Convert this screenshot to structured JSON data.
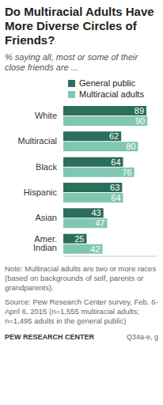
{
  "chart_data": {
    "type": "bar",
    "orientation": "horizontal",
    "title": "Do Multiracial Adults Have More Diverse Circles of Friends?",
    "subtitle": "% saying all, most or some of their close friends are ...",
    "categories": [
      "White",
      "Multiracial",
      "Black",
      "Hispanic",
      "Asian",
      "Amer. Indian"
    ],
    "series": [
      {
        "name": "General public",
        "color": "#2a6e5b",
        "values": [
          89,
          62,
          64,
          63,
          43,
          25
        ]
      },
      {
        "name": "Multiracial adults",
        "color": "#7fc7b1",
        "values": [
          90,
          80,
          76,
          64,
          47,
          42
        ]
      }
    ],
    "xlim": [
      0,
      100
    ],
    "data_labels": true,
    "tick_labels": "y",
    "legend": "top",
    "grid": false,
    "annotations": [
      "Note: Multiracial adults are two or more races (based on backgrounds of self, parents or grandparents).",
      "Source: Pew Research Center survey, Feb. 6-April 6, 2015 (n=1,555 multiracial adults; n=1,495 adults in the general public)",
      "PEW RESEARCH CENTER",
      "Q34a-e, g"
    ]
  }
}
